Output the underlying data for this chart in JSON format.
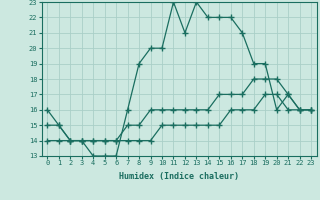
{
  "xlabel": "Humidex (Indice chaleur)",
  "background_color": "#cce8e0",
  "grid_color": "#aacfc8",
  "line_color": "#1a6e60",
  "xlim": [
    -0.5,
    23.5
  ],
  "ylim": [
    13,
    23
  ],
  "xticks": [
    0,
    1,
    2,
    3,
    4,
    5,
    6,
    7,
    8,
    9,
    10,
    11,
    12,
    13,
    14,
    15,
    16,
    17,
    18,
    19,
    20,
    21,
    22,
    23
  ],
  "yticks": [
    13,
    14,
    15,
    16,
    17,
    18,
    19,
    20,
    21,
    22,
    23
  ],
  "line1_x": [
    0,
    1,
    2,
    3,
    4,
    5,
    6,
    7,
    8,
    9,
    10,
    11,
    12,
    13,
    14,
    15,
    16,
    17,
    18,
    19,
    20,
    21,
    22,
    23
  ],
  "line1_y": [
    16,
    15,
    14,
    14,
    13,
    13,
    13,
    16,
    19,
    20,
    20,
    23,
    21,
    23,
    22,
    22,
    22,
    21,
    19,
    19,
    16,
    17,
    16,
    16
  ],
  "line2_x": [
    0,
    1,
    2,
    3,
    4,
    5,
    6,
    7,
    8,
    9,
    10,
    11,
    12,
    13,
    14,
    15,
    16,
    17,
    18,
    19,
    20,
    21,
    22,
    23
  ],
  "line2_y": [
    14,
    14,
    14,
    14,
    14,
    14,
    14,
    14,
    14,
    14,
    15,
    15,
    15,
    15,
    15,
    15,
    16,
    16,
    16,
    17,
    17,
    16,
    16,
    16
  ],
  "line3_x": [
    0,
    1,
    2,
    3,
    4,
    5,
    6,
    7,
    8,
    9,
    10,
    11,
    12,
    13,
    14,
    15,
    16,
    17,
    18,
    19,
    20,
    21,
    22,
    23
  ],
  "line3_y": [
    15,
    15,
    14,
    14,
    14,
    14,
    14,
    15,
    15,
    16,
    16,
    16,
    16,
    16,
    16,
    17,
    17,
    17,
    18,
    18,
    18,
    17,
    16,
    16
  ]
}
